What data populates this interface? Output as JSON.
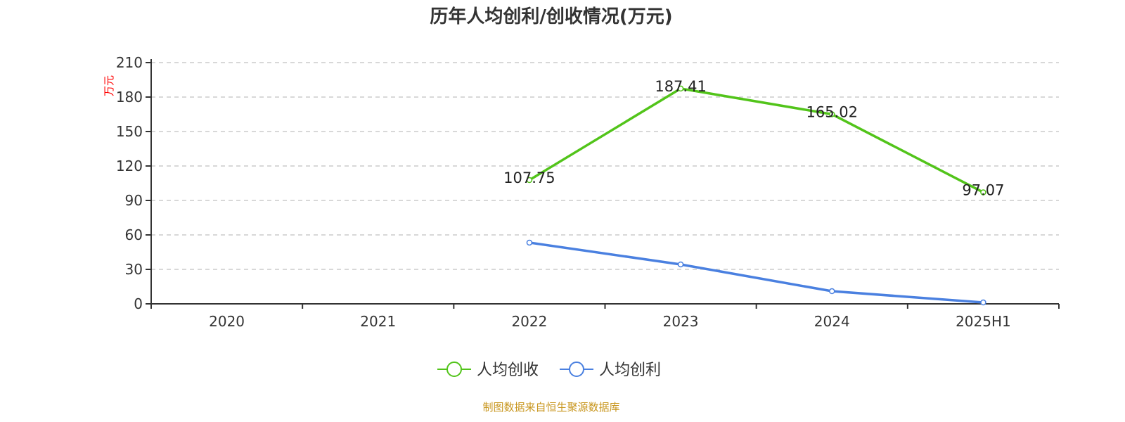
{
  "chart_data": {
    "type": "line",
    "title": "历年人均创利/创收情况(万元)",
    "ylabel": "万元",
    "xlabel": "",
    "categories": [
      "2020",
      "2021",
      "2022",
      "2023",
      "2024",
      "2025H1"
    ],
    "ylim": [
      0,
      210
    ],
    "yticks": [
      0,
      30,
      60,
      90,
      120,
      150,
      180,
      210
    ],
    "grid": true,
    "legend_position": "bottom",
    "series": [
      {
        "name": "人均创收",
        "color": "#52c41a",
        "values": [
          null,
          null,
          107.75,
          187.41,
          165.02,
          97.07
        ],
        "labels": [
          "",
          "",
          "107.75",
          "187.41",
          "165.02",
          "97.07"
        ]
      },
      {
        "name": "人均创利",
        "color": "#4a80e0",
        "values": [
          null,
          null,
          53.3,
          34.3,
          11.0,
          1.2
        ]
      }
    ]
  },
  "footer": {
    "source": "制图数据来自恒生聚源数据库"
  },
  "colors": {
    "title": "#333333",
    "axis": "#333333",
    "grid": "#cccccc",
    "ylabel": "#ff0000",
    "source": "#c8961e"
  }
}
